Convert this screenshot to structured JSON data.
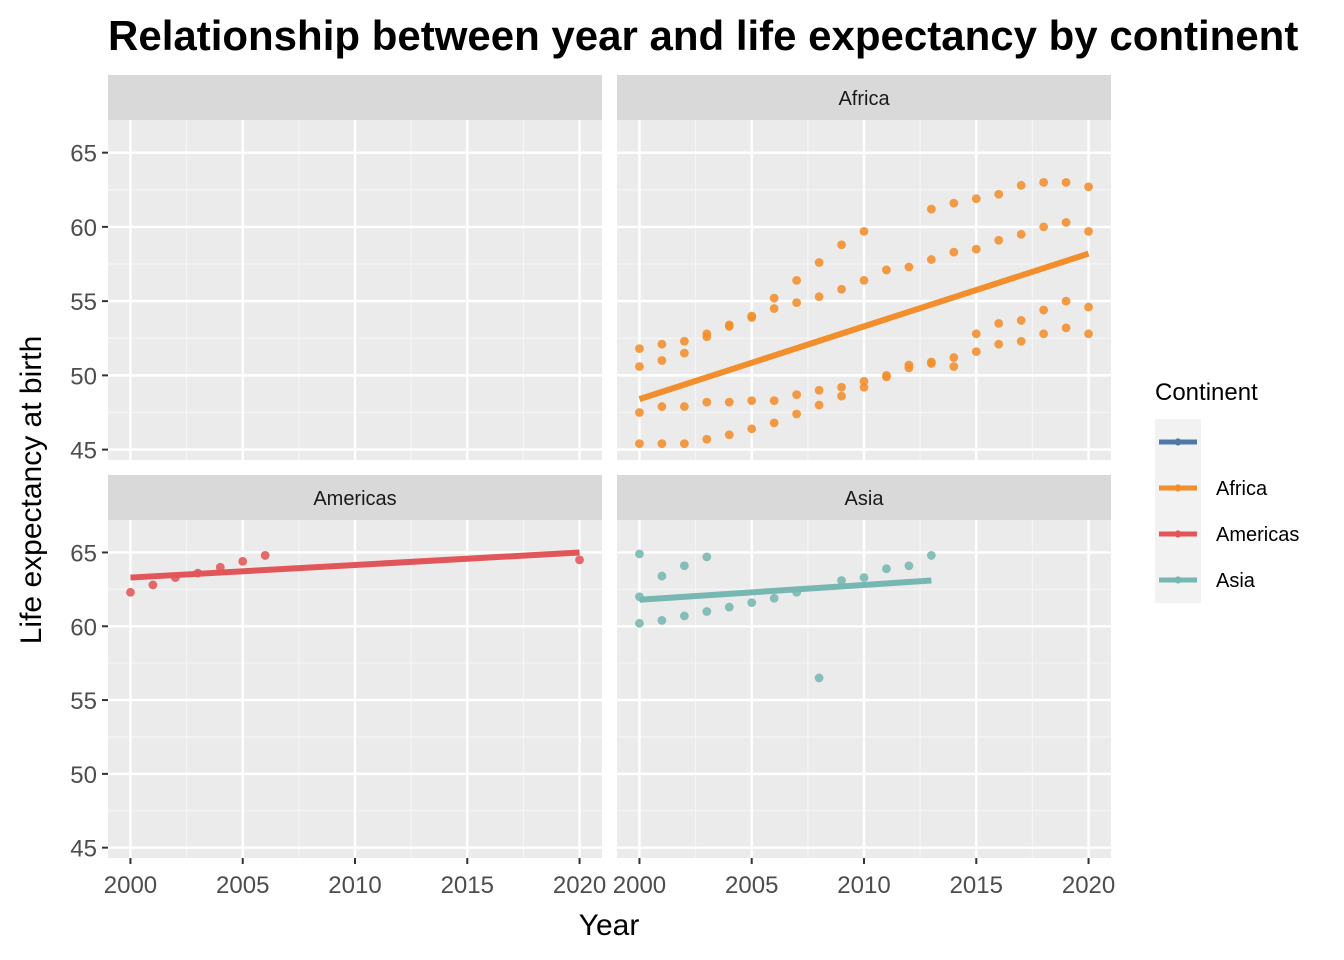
{
  "chart_data": {
    "type": "scatter",
    "title": "Relationship between year and life expectancy by continent",
    "xlabel": "Year",
    "ylabel": "Life expectancy at birth",
    "xlim": [
      1999,
      2021
    ],
    "ylim": [
      44.3,
      67.2
    ],
    "x_ticks": [
      2000,
      2005,
      2010,
      2015,
      2020
    ],
    "y_ticks": [
      45,
      50,
      55,
      60,
      65
    ],
    "grid": true,
    "legend_title": "Continent",
    "legend_placement": "right",
    "panels": [
      {
        "name": "",
        "color": "#4e79a7",
        "points": [],
        "trend": null
      },
      {
        "name": "Africa",
        "color": "#f28e2b",
        "points": [
          [
            2000,
            45.4
          ],
          [
            2001,
            45.4
          ],
          [
            2002,
            45.4
          ],
          [
            2003,
            45.7
          ],
          [
            2004,
            46.0
          ],
          [
            2005,
            46.4
          ],
          [
            2006,
            46.8
          ],
          [
            2007,
            47.4
          ],
          [
            2008,
            48.0
          ],
          [
            2009,
            48.6
          ],
          [
            2010,
            49.2
          ],
          [
            2011,
            49.9
          ],
          [
            2012,
            50.5
          ],
          [
            2013,
            50.8
          ],
          [
            2014,
            51.2
          ],
          [
            2015,
            51.6
          ],
          [
            2016,
            52.1
          ],
          [
            2017,
            52.3
          ],
          [
            2018,
            52.8
          ],
          [
            2019,
            53.2
          ],
          [
            2020,
            52.8
          ],
          [
            2000,
            47.5
          ],
          [
            2001,
            47.9
          ],
          [
            2002,
            47.9
          ],
          [
            2003,
            48.2
          ],
          [
            2004,
            48.2
          ],
          [
            2005,
            48.3
          ],
          [
            2006,
            48.3
          ],
          [
            2007,
            48.7
          ],
          [
            2008,
            49.0
          ],
          [
            2009,
            49.2
          ],
          [
            2010,
            49.6
          ],
          [
            2011,
            50.0
          ],
          [
            2012,
            50.7
          ],
          [
            2013,
            50.9
          ],
          [
            2014,
            50.6
          ],
          [
            2015,
            52.8
          ],
          [
            2016,
            53.5
          ],
          [
            2017,
            53.7
          ],
          [
            2018,
            54.4
          ],
          [
            2019,
            55.0
          ],
          [
            2020,
            54.6
          ],
          [
            2000,
            50.6
          ],
          [
            2001,
            51.0
          ],
          [
            2002,
            51.5
          ],
          [
            2003,
            52.6
          ],
          [
            2004,
            53.3
          ],
          [
            2005,
            53.9
          ],
          [
            2006,
            54.5
          ],
          [
            2007,
            54.9
          ],
          [
            2008,
            55.3
          ],
          [
            2009,
            55.8
          ],
          [
            2010,
            56.4
          ],
          [
            2011,
            57.1
          ],
          [
            2012,
            57.3
          ],
          [
            2013,
            57.8
          ],
          [
            2014,
            58.3
          ],
          [
            2015,
            58.5
          ],
          [
            2016,
            59.1
          ],
          [
            2017,
            59.5
          ],
          [
            2018,
            60.0
          ],
          [
            2019,
            60.3
          ],
          [
            2020,
            59.7
          ],
          [
            2000,
            51.8
          ],
          [
            2001,
            52.1
          ],
          [
            2002,
            52.3
          ],
          [
            2003,
            52.8
          ],
          [
            2004,
            53.4
          ],
          [
            2005,
            54.0
          ],
          [
            2006,
            55.2
          ],
          [
            2007,
            56.4
          ],
          [
            2008,
            57.6
          ],
          [
            2009,
            58.8
          ],
          [
            2010,
            59.7
          ],
          [
            2013,
            61.2
          ],
          [
            2014,
            61.6
          ],
          [
            2015,
            61.9
          ],
          [
            2016,
            62.2
          ],
          [
            2017,
            62.8
          ],
          [
            2018,
            63.0
          ],
          [
            2019,
            63.0
          ],
          [
            2020,
            62.7
          ]
        ],
        "trend": [
          [
            2000,
            48.4
          ],
          [
            2020,
            58.2
          ]
        ]
      },
      {
        "name": "Americas",
        "color": "#e15759",
        "points": [
          [
            2000,
            62.3
          ],
          [
            2001,
            62.8
          ],
          [
            2002,
            63.3
          ],
          [
            2003,
            63.6
          ],
          [
            2004,
            64.0
          ],
          [
            2005,
            64.4
          ],
          [
            2006,
            64.8
          ],
          [
            2020,
            64.5
          ]
        ],
        "trend": [
          [
            2000,
            63.3
          ],
          [
            2020,
            65.0
          ]
        ]
      },
      {
        "name": "Asia",
        "color": "#76b7b2",
        "points": [
          [
            2000,
            64.9
          ],
          [
            2001,
            63.4
          ],
          [
            2002,
            64.1
          ],
          [
            2003,
            64.7
          ],
          [
            2000,
            62.0
          ],
          [
            2000,
            60.2
          ],
          [
            2001,
            60.4
          ],
          [
            2002,
            60.7
          ],
          [
            2003,
            61.0
          ],
          [
            2004,
            61.3
          ],
          [
            2005,
            61.6
          ],
          [
            2006,
            61.9
          ],
          [
            2007,
            62.3
          ],
          [
            2008,
            56.5
          ],
          [
            2009,
            63.1
          ],
          [
            2010,
            63.3
          ],
          [
            2011,
            63.9
          ],
          [
            2012,
            64.1
          ],
          [
            2013,
            64.8
          ]
        ],
        "trend": [
          [
            2000,
            61.8
          ],
          [
            2013,
            63.1
          ]
        ]
      }
    ],
    "legend": [
      {
        "name": "",
        "color": "#4e79a7"
      },
      {
        "name": "Africa",
        "color": "#f28e2b"
      },
      {
        "name": "Americas",
        "color": "#e15759"
      },
      {
        "name": "Asia",
        "color": "#76b7b2"
      }
    ]
  }
}
